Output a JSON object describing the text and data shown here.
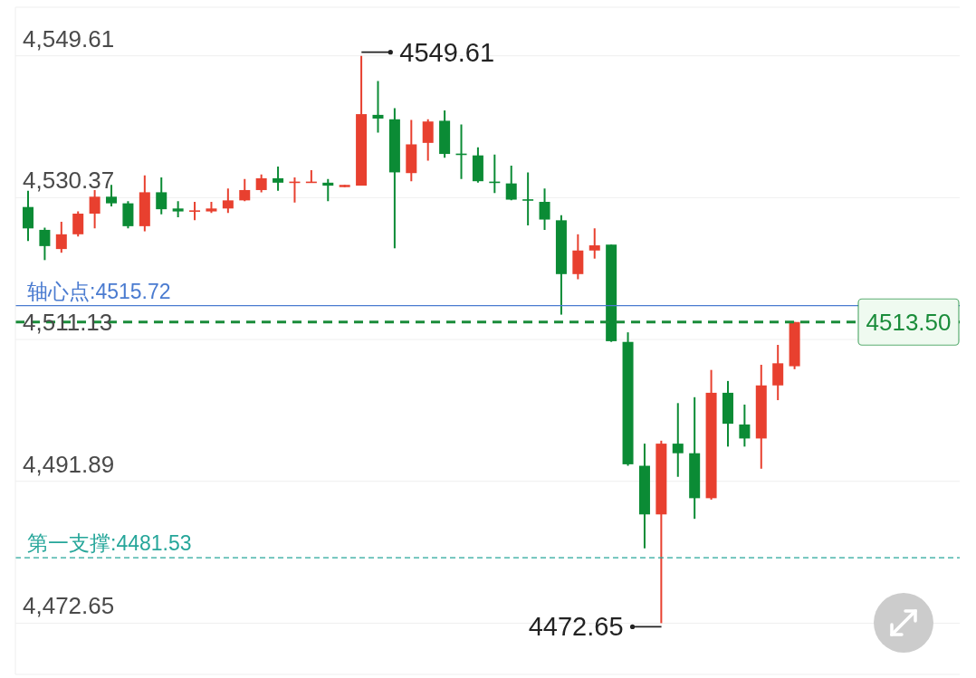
{
  "chart_data": {
    "type": "candlestick",
    "categories": [
      null,
      null,
      null,
      null,
      null,
      null,
      null,
      null,
      null,
      null,
      null,
      null,
      null,
      null,
      null,
      null,
      null,
      null,
      null,
      null,
      null,
      null,
      null,
      null,
      null,
      null,
      null,
      null,
      null,
      null,
      null,
      null,
      null,
      null,
      null,
      null,
      null,
      null,
      null,
      null,
      null,
      null,
      null,
      null,
      null,
      null,
      null
    ],
    "ohlc": [
      [
        4529.1,
        4531.3,
        4524.5,
        4526.2
      ],
      [
        4526.0,
        4526.3,
        4521.9,
        4523.8
      ],
      [
        4523.4,
        4527.1,
        4522.9,
        4525.4
      ],
      [
        4525.4,
        4528.5,
        4525.1,
        4528.2
      ],
      [
        4528.2,
        4531.4,
        4526.2,
        4530.5
      ],
      [
        4530.5,
        4532.1,
        4529.2,
        4529.6
      ],
      [
        4529.6,
        4529.9,
        4526.2,
        4526.5
      ],
      [
        4526.5,
        4533.4,
        4525.8,
        4531.1
      ],
      [
        4531.1,
        4533.1,
        4528.1,
        4528.8
      ],
      [
        4528.9,
        4529.9,
        4527.7,
        4528.5
      ],
      [
        4528.5,
        4529.8,
        4527.3,
        4528.6
      ],
      [
        4528.5,
        4529.8,
        4528.3,
        4528.9
      ],
      [
        4528.9,
        4531.6,
        4528.3,
        4530.0
      ],
      [
        4530.0,
        4532.9,
        4529.9,
        4531.4
      ],
      [
        4531.4,
        4533.5,
        4531.1,
        4533.0
      ],
      [
        4533.0,
        4534.6,
        4531.3,
        4532.4
      ],
      [
        4532.4,
        4533.1,
        4529.7,
        4532.5
      ],
      [
        4532.4,
        4534.1,
        4532.4,
        4532.5
      ],
      [
        4532.4,
        4532.9,
        4529.9,
        4532.0
      ],
      [
        4531.8,
        4532.1,
        4531.8,
        4532.1
      ],
      [
        4532.0,
        4549.61,
        4532.0,
        4541.7
      ],
      [
        4541.6,
        4546.2,
        4539.2,
        4541.1
      ],
      [
        4541.0,
        4542.5,
        4523.5,
        4533.8
      ],
      [
        4533.7,
        4540.9,
        4532.6,
        4537.6
      ],
      [
        4537.8,
        4541.0,
        4535.4,
        4540.7
      ],
      [
        4540.8,
        4542.2,
        4535.8,
        4536.3
      ],
      [
        4536.3,
        4540.3,
        4532.9,
        4536.2
      ],
      [
        4536.1,
        4537.2,
        4532.4,
        4532.6
      ],
      [
        4532.5,
        4536.2,
        4531.0,
        4532.4
      ],
      [
        4532.3,
        4534.7,
        4530.0,
        4530.1
      ],
      [
        4530.1,
        4533.8,
        4526.6,
        4530.0
      ],
      [
        4529.8,
        4531.6,
        4526.0,
        4527.4
      ],
      [
        4527.3,
        4528.0,
        4514.5,
        4520.0
      ],
      [
        4520.0,
        4525.4,
        4519.3,
        4523.2
      ],
      [
        4523.2,
        4526.2,
        4522.1,
        4523.9
      ],
      [
        4524.0,
        4524.0,
        4510.8,
        4510.9
      ],
      [
        4510.8,
        4512.1,
        4494.0,
        4494.2
      ],
      [
        4494.0,
        4497.0,
        4482.8,
        4487.4
      ],
      [
        4487.4,
        4497.4,
        4472.65,
        4497.0
      ],
      [
        4497.0,
        4502.5,
        4492.5,
        4495.7
      ],
      [
        4495.7,
        4503.3,
        4486.8,
        4489.6
      ],
      [
        4489.6,
        4507.0,
        4489.4,
        4503.9
      ],
      [
        4503.9,
        4505.5,
        4496.6,
        4499.7
      ],
      [
        4499.6,
        4502.3,
        4496.6,
        4497.7
      ],
      [
        4497.7,
        4507.7,
        4493.6,
        4504.9
      ],
      [
        4504.9,
        4510.4,
        4502.9,
        4507.9
      ],
      [
        4507.5,
        4513.5,
        4507.1,
        4513.5
      ]
    ],
    "colors": [
      "#0b8b35",
      "#0b8b35",
      "#e8402f",
      "#e8402f",
      "#e8402f",
      "#0b8b35",
      "#0b8b35",
      "#e8402f",
      "#0b8b35",
      "#0b8b35",
      "#e8402f",
      "#e8402f",
      "#e8402f",
      "#e8402f",
      "#e8402f",
      "#0b8b35",
      "#e8402f",
      "#e8402f",
      "#0b8b35",
      "#e8402f",
      "#e8402f",
      "#0b8b35",
      "#0b8b35",
      "#e8402f",
      "#e8402f",
      "#0b8b35",
      "#0b8b35",
      "#0b8b35",
      "#0b8b35",
      "#0b8b35",
      "#0b8b35",
      "#0b8b35",
      "#0b8b35",
      "#e8402f",
      "#e8402f",
      "#0b8b35",
      "#0b8b35",
      "#0b8b35",
      "#e8402f",
      "#0b8b35",
      "#0b8b35",
      "#e8402f",
      "#0b8b35",
      "#0b8b35",
      "#e8402f",
      "#e8402f",
      "#e8402f"
    ],
    "ylim": [
      4465.7,
      4556.2
    ],
    "yticks": [
      {
        "value": 4472.65,
        "label": "4,472.65"
      },
      {
        "value": 4491.89,
        "label": "4,491.89"
      },
      {
        "value": 4511.13,
        "label": "4,511.13"
      },
      {
        "value": 4530.37,
        "label": "4,530.37"
      },
      {
        "value": 4549.61,
        "label": "4,549.61"
      }
    ],
    "grid": "y",
    "tick_labels": "y",
    "ref_lines": [
      {
        "axis": "y",
        "value": 4515.72,
        "label": "轴心点:4515.72",
        "color": "#4a7bd0",
        "line_style": "solid"
      },
      {
        "axis": "y",
        "value": 4481.53,
        "label": "第一支撑:4481.53",
        "color": "#26a69a",
        "line_style": "dashed"
      },
      {
        "axis": "y",
        "value": 4513.5,
        "label": "4513.50",
        "color": "#1a8c3a",
        "line_style": "dashed"
      }
    ],
    "annotations": [
      "4549.61",
      "4472.65"
    ]
  }
}
